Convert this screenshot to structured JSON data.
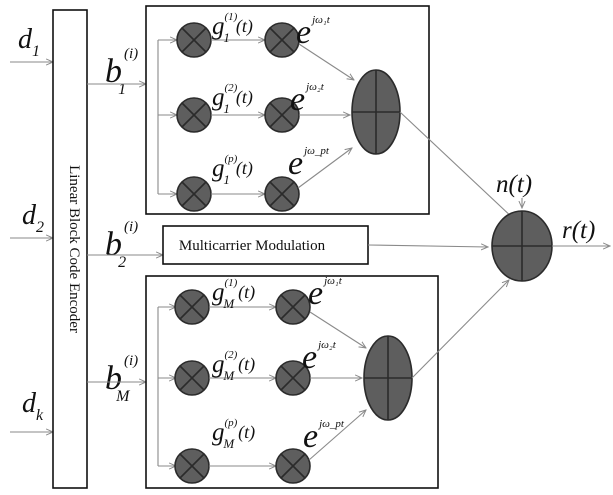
{
  "inputs": [
    {
      "base": "d",
      "sub": "1"
    },
    {
      "base": "d",
      "sub": "2"
    },
    {
      "base": "d",
      "sub": "k"
    }
  ],
  "encoder_label": "Linear Block Code Encoder",
  "branches": [
    {
      "base": "b",
      "sup": "(i)",
      "sub": "1"
    },
    {
      "base": "b",
      "sup": "(i)",
      "sub": "2"
    },
    {
      "base": "b",
      "sup": "(i)",
      "sub": "M"
    }
  ],
  "modulation_label": "Multicarrier Modulation",
  "top_block": {
    "g_labels": [
      {
        "base": "g",
        "sup": "(1)",
        "sub": "1",
        "arg": "(t)"
      },
      {
        "base": "g",
        "sup": "(2)",
        "sub": "1",
        "arg": "(t)"
      },
      {
        "base": "g",
        "sup": "(p)",
        "sub": "1",
        "arg": "(t)"
      }
    ],
    "e_labels": [
      {
        "base": "e",
        "sup": "jω₁t"
      },
      {
        "base": "e",
        "sup": "jω₂t"
      },
      {
        "base": "e",
        "sup": "jω_pt"
      }
    ]
  },
  "bottom_block": {
    "g_labels": [
      {
        "base": "g",
        "sup": "(1)",
        "sub": "M",
        "arg": "(t)"
      },
      {
        "base": "g",
        "sup": "(2)",
        "sub": "M",
        "arg": "(t)"
      },
      {
        "base": "g",
        "sup": "(p)",
        "sub": "M",
        "arg": "(t)"
      }
    ],
    "e_labels": [
      {
        "base": "e",
        "sup": "jω₁t"
      },
      {
        "base": "e",
        "sup": "jω₂t"
      },
      {
        "base": "e",
        "sup": "jω_pt"
      }
    ]
  },
  "noise_label": "n(t)",
  "output_label": "r(t)"
}
